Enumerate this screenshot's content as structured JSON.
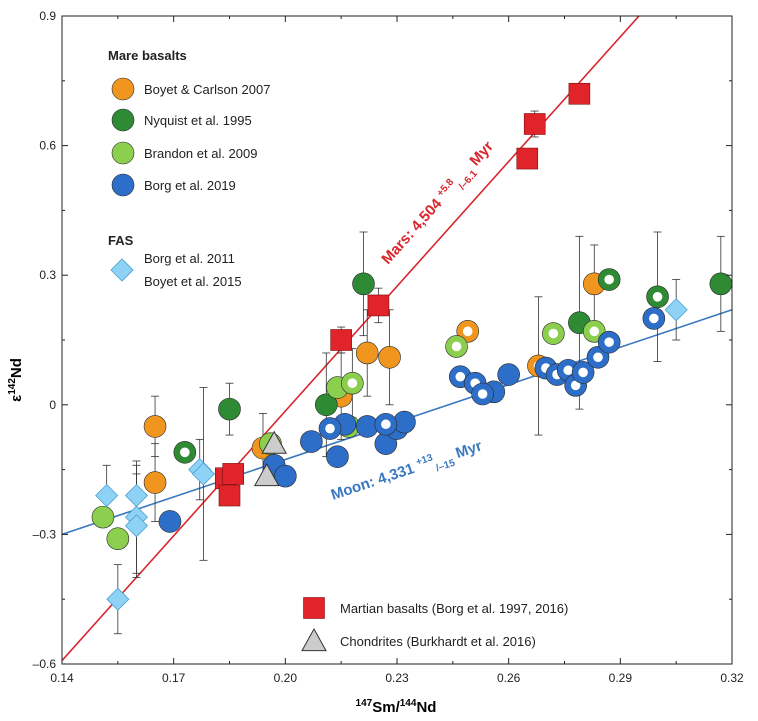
{
  "chart_data": {
    "type": "scatter",
    "xlabel": {
      "sup1": "147",
      "t1": "Sm/",
      "sup2": "144",
      "t2": "Nd"
    },
    "ylabel": {
      "pre": "ε",
      "sup": "142",
      "post": "Nd"
    },
    "xlim": [
      0.14,
      0.32
    ],
    "ylim": [
      -0.6,
      0.9
    ],
    "x_ticks": [
      0.14,
      0.17,
      0.2,
      0.23,
      0.26,
      0.29,
      0.32
    ],
    "x_tick_labels": [
      "0.14",
      "0.17",
      "0.20",
      "0.23",
      "0.26",
      "0.29",
      "0.32"
    ],
    "y_ticks": [
      -0.6,
      -0.3,
      0,
      0.3,
      0.6,
      0.9
    ],
    "y_tick_labels": [
      "–0.6",
      "–0.3",
      "0",
      "0.3",
      "0.6",
      "0.9"
    ],
    "colors": {
      "orange": "#f0961e",
      "dark_green": "#2e8b34",
      "light_green": "#8ccf4e",
      "blue": "#2d6ec8",
      "light_blue": "#8ed2f5",
      "red": "#e0242a",
      "gray": "#cccccc",
      "mars_line": "#d9262c",
      "moon_line": "#3a78c0"
    },
    "legend": {
      "mare_heading": "Mare basalts",
      "fas_heading": "FAS",
      "items": [
        {
          "label": "Boyet & Carlson 2007",
          "key": "boyet2007"
        },
        {
          "label": "Nyquist et al. 1995",
          "key": "nyquist1995"
        },
        {
          "label": "Brandon et al. 2009",
          "key": "brandon2009"
        },
        {
          "label": "Borg et al. 2019",
          "key": "borg2019"
        },
        {
          "label": "Borg et al. 2011",
          "key": "fas"
        },
        {
          "label": "Boyet et al. 2015",
          "key": "fas"
        },
        {
          "label": "Martian basalts (Borg et al. 1997, 2016)",
          "key": "mars"
        },
        {
          "label": "Chondrites (Burkhardt et al. 2016)",
          "key": "chondrites"
        }
      ]
    },
    "isochrons": [
      {
        "name": "Mars",
        "label": "Mars: 4,504",
        "sup": "+5.8",
        "sub": "–6.1",
        "unit": "Myr",
        "x0": 0.14,
        "y0": -0.592,
        "x1": 0.295,
        "y1": 0.9
      },
      {
        "name": "Moon",
        "label": "Moon: 4,331",
        "sup": "+13",
        "sub": "–15",
        "unit": "Myr",
        "x0": 0.14,
        "y0": -0.3,
        "x1": 0.32,
        "y1": 0.22
      }
    ],
    "series": [
      {
        "key": "boyet2007",
        "name": "Boyet & Carlson 2007",
        "marker": "circle",
        "color": "orange",
        "points": [
          {
            "x": 0.165,
            "y": -0.05,
            "err": 0.07
          },
          {
            "x": 0.165,
            "y": -0.18,
            "err": 0.09
          },
          {
            "x": 0.194,
            "y": -0.1,
            "err": 0.08
          },
          {
            "x": 0.215,
            "y": 0.02,
            "err": 0.1
          },
          {
            "x": 0.222,
            "y": 0.12,
            "err": 0.1
          },
          {
            "x": 0.228,
            "y": 0.11,
            "err": 0.11
          },
          {
            "x": 0.283,
            "y": 0.28,
            "err": 0.09
          }
        ]
      },
      {
        "key": "boyet2007_open",
        "name": "Boyet & Carlson 2007",
        "marker": "ring",
        "color": "orange",
        "points": [
          {
            "x": 0.249,
            "y": 0.17,
            "err": 0.0
          },
          {
            "x": 0.268,
            "y": 0.09,
            "err": 0.16
          }
        ]
      },
      {
        "key": "nyquist1995",
        "name": "Nyquist et al. 1995",
        "marker": "circle",
        "color": "dark_green",
        "points": [
          {
            "x": 0.185,
            "y": -0.01,
            "err": 0.06
          },
          {
            "x": 0.211,
            "y": 0.0,
            "err": 0.12
          },
          {
            "x": 0.221,
            "y": 0.28,
            "err": 0.12
          },
          {
            "x": 0.279,
            "y": 0.19,
            "err": 0.2
          },
          {
            "x": 0.317,
            "y": 0.28,
            "err": 0.11
          }
        ]
      },
      {
        "key": "nyquist1995_open",
        "name": "Nyquist et al. 1995",
        "marker": "ring",
        "color": "dark_green",
        "points": [
          {
            "x": 0.173,
            "y": -0.11,
            "err": 0.0
          },
          {
            "x": 0.287,
            "y": 0.29,
            "err": 0.0
          },
          {
            "x": 0.3,
            "y": 0.25,
            "err": 0.15
          }
        ]
      },
      {
        "key": "brandon2009",
        "name": "Brandon et al. 2009",
        "marker": "circle",
        "color": "light_green",
        "points": [
          {
            "x": 0.151,
            "y": -0.26,
            "err": 0.0
          },
          {
            "x": 0.155,
            "y": -0.31,
            "err": 0.0
          },
          {
            "x": 0.196,
            "y": -0.09,
            "err": 0.0
          },
          {
            "x": 0.214,
            "y": 0.04,
            "err": 0.0
          },
          {
            "x": 0.217,
            "y": -0.05,
            "err": 0.0
          }
        ]
      },
      {
        "key": "brandon2009_open",
        "name": "Brandon et al. 2009",
        "marker": "ring",
        "color": "light_green",
        "points": [
          {
            "x": 0.218,
            "y": 0.05,
            "err": 0.08
          },
          {
            "x": 0.246,
            "y": 0.135,
            "err": 0.0
          },
          {
            "x": 0.272,
            "y": 0.165,
            "err": 0.0
          },
          {
            "x": 0.283,
            "y": 0.17,
            "err": 0.0
          }
        ]
      },
      {
        "key": "borg2019",
        "name": "Borg et al. 2019",
        "marker": "circle",
        "color": "blue",
        "points": [
          {
            "x": 0.169,
            "y": -0.27,
            "err": 0.0
          },
          {
            "x": 0.197,
            "y": -0.14,
            "err": 0.0
          },
          {
            "x": 0.2,
            "y": -0.165,
            "err": 0.0
          },
          {
            "x": 0.207,
            "y": -0.085,
            "err": 0.0
          },
          {
            "x": 0.214,
            "y": -0.12,
            "err": 0.0
          },
          {
            "x": 0.216,
            "y": -0.045,
            "err": 0.0
          },
          {
            "x": 0.222,
            "y": -0.05,
            "err": 0.0
          },
          {
            "x": 0.227,
            "y": -0.09,
            "err": 0.0
          },
          {
            "x": 0.23,
            "y": -0.055,
            "err": 0.0
          },
          {
            "x": 0.232,
            "y": -0.04,
            "err": 0.0
          },
          {
            "x": 0.256,
            "y": 0.03,
            "err": 0.0
          },
          {
            "x": 0.26,
            "y": 0.07,
            "err": 0.0
          }
        ]
      },
      {
        "key": "borg2019_open",
        "name": "Borg et al. 2019",
        "marker": "ring",
        "color": "blue",
        "points": [
          {
            "x": 0.212,
            "y": -0.055,
            "err": 0.0
          },
          {
            "x": 0.227,
            "y": -0.045,
            "err": 0.0
          },
          {
            "x": 0.247,
            "y": 0.065,
            "err": 0.0
          },
          {
            "x": 0.251,
            "y": 0.05,
            "err": 0.0
          },
          {
            "x": 0.253,
            "y": 0.025,
            "err": 0.0
          },
          {
            "x": 0.27,
            "y": 0.085,
            "err": 0.0
          },
          {
            "x": 0.273,
            "y": 0.07,
            "err": 0.0
          },
          {
            "x": 0.276,
            "y": 0.08,
            "err": 0.0
          },
          {
            "x": 0.278,
            "y": 0.045,
            "err": 0.0
          },
          {
            "x": 0.28,
            "y": 0.075,
            "err": 0.0
          },
          {
            "x": 0.284,
            "y": 0.11,
            "err": 0.0
          },
          {
            "x": 0.287,
            "y": 0.145,
            "err": 0.0
          },
          {
            "x": 0.299,
            "y": 0.2,
            "err": 0.0
          }
        ]
      },
      {
        "key": "fas",
        "name": "FAS (Borg et al. 2011; Boyet et al. 2015)",
        "marker": "diamond",
        "color": "light_blue",
        "points": [
          {
            "x": 0.152,
            "y": -0.21,
            "err": 0.07
          },
          {
            "x": 0.155,
            "y": -0.45,
            "err": 0.08
          },
          {
            "x": 0.16,
            "y": -0.21,
            "err": 0.07
          },
          {
            "x": 0.16,
            "y": -0.26,
            "err": 0.13
          },
          {
            "x": 0.16,
            "y": -0.28,
            "err": 0.12
          },
          {
            "x": 0.177,
            "y": -0.15,
            "err": 0.07
          },
          {
            "x": 0.178,
            "y": -0.16,
            "err": 0.2
          },
          {
            "x": 0.305,
            "y": 0.22,
            "err": 0.07
          }
        ]
      },
      {
        "key": "mars",
        "name": "Martian basalts (Borg et al. 1997, 2016)",
        "marker": "square",
        "color": "red",
        "points": [
          {
            "x": 0.184,
            "y": -0.17,
            "err": 0.0
          },
          {
            "x": 0.185,
            "y": -0.21,
            "err": 0.0
          },
          {
            "x": 0.186,
            "y": -0.16,
            "err": 0.0
          },
          {
            "x": 0.215,
            "y": 0.15,
            "err": 0.03
          },
          {
            "x": 0.225,
            "y": 0.23,
            "err": 0.04
          },
          {
            "x": 0.265,
            "y": 0.57,
            "err": 0.0
          },
          {
            "x": 0.267,
            "y": 0.65,
            "err": 0.03
          },
          {
            "x": 0.279,
            "y": 0.72,
            "err": 0.0
          }
        ]
      },
      {
        "key": "chondrites",
        "name": "Chondrites (Burkhardt et al. 2016)",
        "marker": "triangle",
        "color": "gray",
        "points": [
          {
            "x": 0.195,
            "y": -0.165,
            "err": 0.0
          },
          {
            "x": 0.197,
            "y": -0.09,
            "err": 0.0
          }
        ]
      }
    ]
  }
}
